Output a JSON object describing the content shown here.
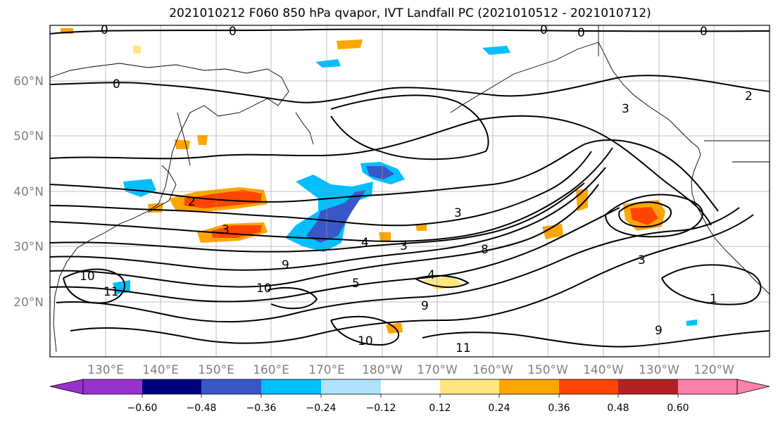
{
  "title": "2021010212 F060 850 hPa qvapor, IVT Landfall PC (2021010512 - 2021010712)",
  "map": {
    "lat_labels": [
      "60°N",
      "50°N",
      "40°N",
      "30°N",
      "20°N"
    ],
    "lon_labels": [
      "130°E",
      "140°E",
      "150°E",
      "160°E",
      "170°E",
      "180°W",
      "170°W",
      "160°W",
      "150°W",
      "140°W",
      "130°W",
      "120°W"
    ],
    "contour_labels": [
      {
        "text": "0"
      },
      {
        "text": "0"
      },
      {
        "text": "0"
      },
      {
        "text": "0"
      },
      {
        "text": "0"
      },
      {
        "text": "0"
      },
      {
        "text": "2"
      },
      {
        "text": "2"
      },
      {
        "text": "3"
      },
      {
        "text": "3"
      },
      {
        "text": "3"
      },
      {
        "text": "3"
      },
      {
        "text": "4"
      },
      {
        "text": "4"
      },
      {
        "text": "5"
      },
      {
        "text": "8"
      },
      {
        "text": "9"
      },
      {
        "text": "9"
      },
      {
        "text": "10"
      },
      {
        "text": "10"
      },
      {
        "text": "10"
      },
      {
        "text": "11"
      },
      {
        "text": "11"
      },
      {
        "text": "1"
      },
      {
        "text": "3"
      },
      {
        "text": "9"
      }
    ]
  },
  "colorbar": {
    "ticks": [
      "−0.60",
      "−0.48",
      "−0.36",
      "−0.24",
      "−0.12",
      "0.12",
      "0.24",
      "0.36",
      "0.48",
      "0.60"
    ],
    "colors": [
      "#9932CC",
      "#000080",
      "#3A57C8",
      "#00BFFF",
      "#B0E2FF",
      "#FFFFFF",
      "#FFE680",
      "#FFA500",
      "#FF4500",
      "#B22222",
      "#FF82AB"
    ]
  },
  "chart_data": {
    "type": "heatmap",
    "title": "2021010212 F060 850 hPa qvapor, IVT Landfall PC (2021010512 - 2021010712)",
    "x_ticks": [
      "130°E",
      "140°E",
      "150°E",
      "160°E",
      "170°E",
      "180°W",
      "170°W",
      "160°W",
      "150°W",
      "140°W",
      "130°W",
      "120°W"
    ],
    "y_ticks": [
      "60°N",
      "50°N",
      "40°N",
      "30°N",
      "20°N"
    ],
    "colorbar_ticks": [
      -0.6,
      -0.48,
      -0.36,
      -0.24,
      -0.12,
      0.12,
      0.24,
      0.36,
      0.48,
      0.6
    ],
    "grid": true
  }
}
